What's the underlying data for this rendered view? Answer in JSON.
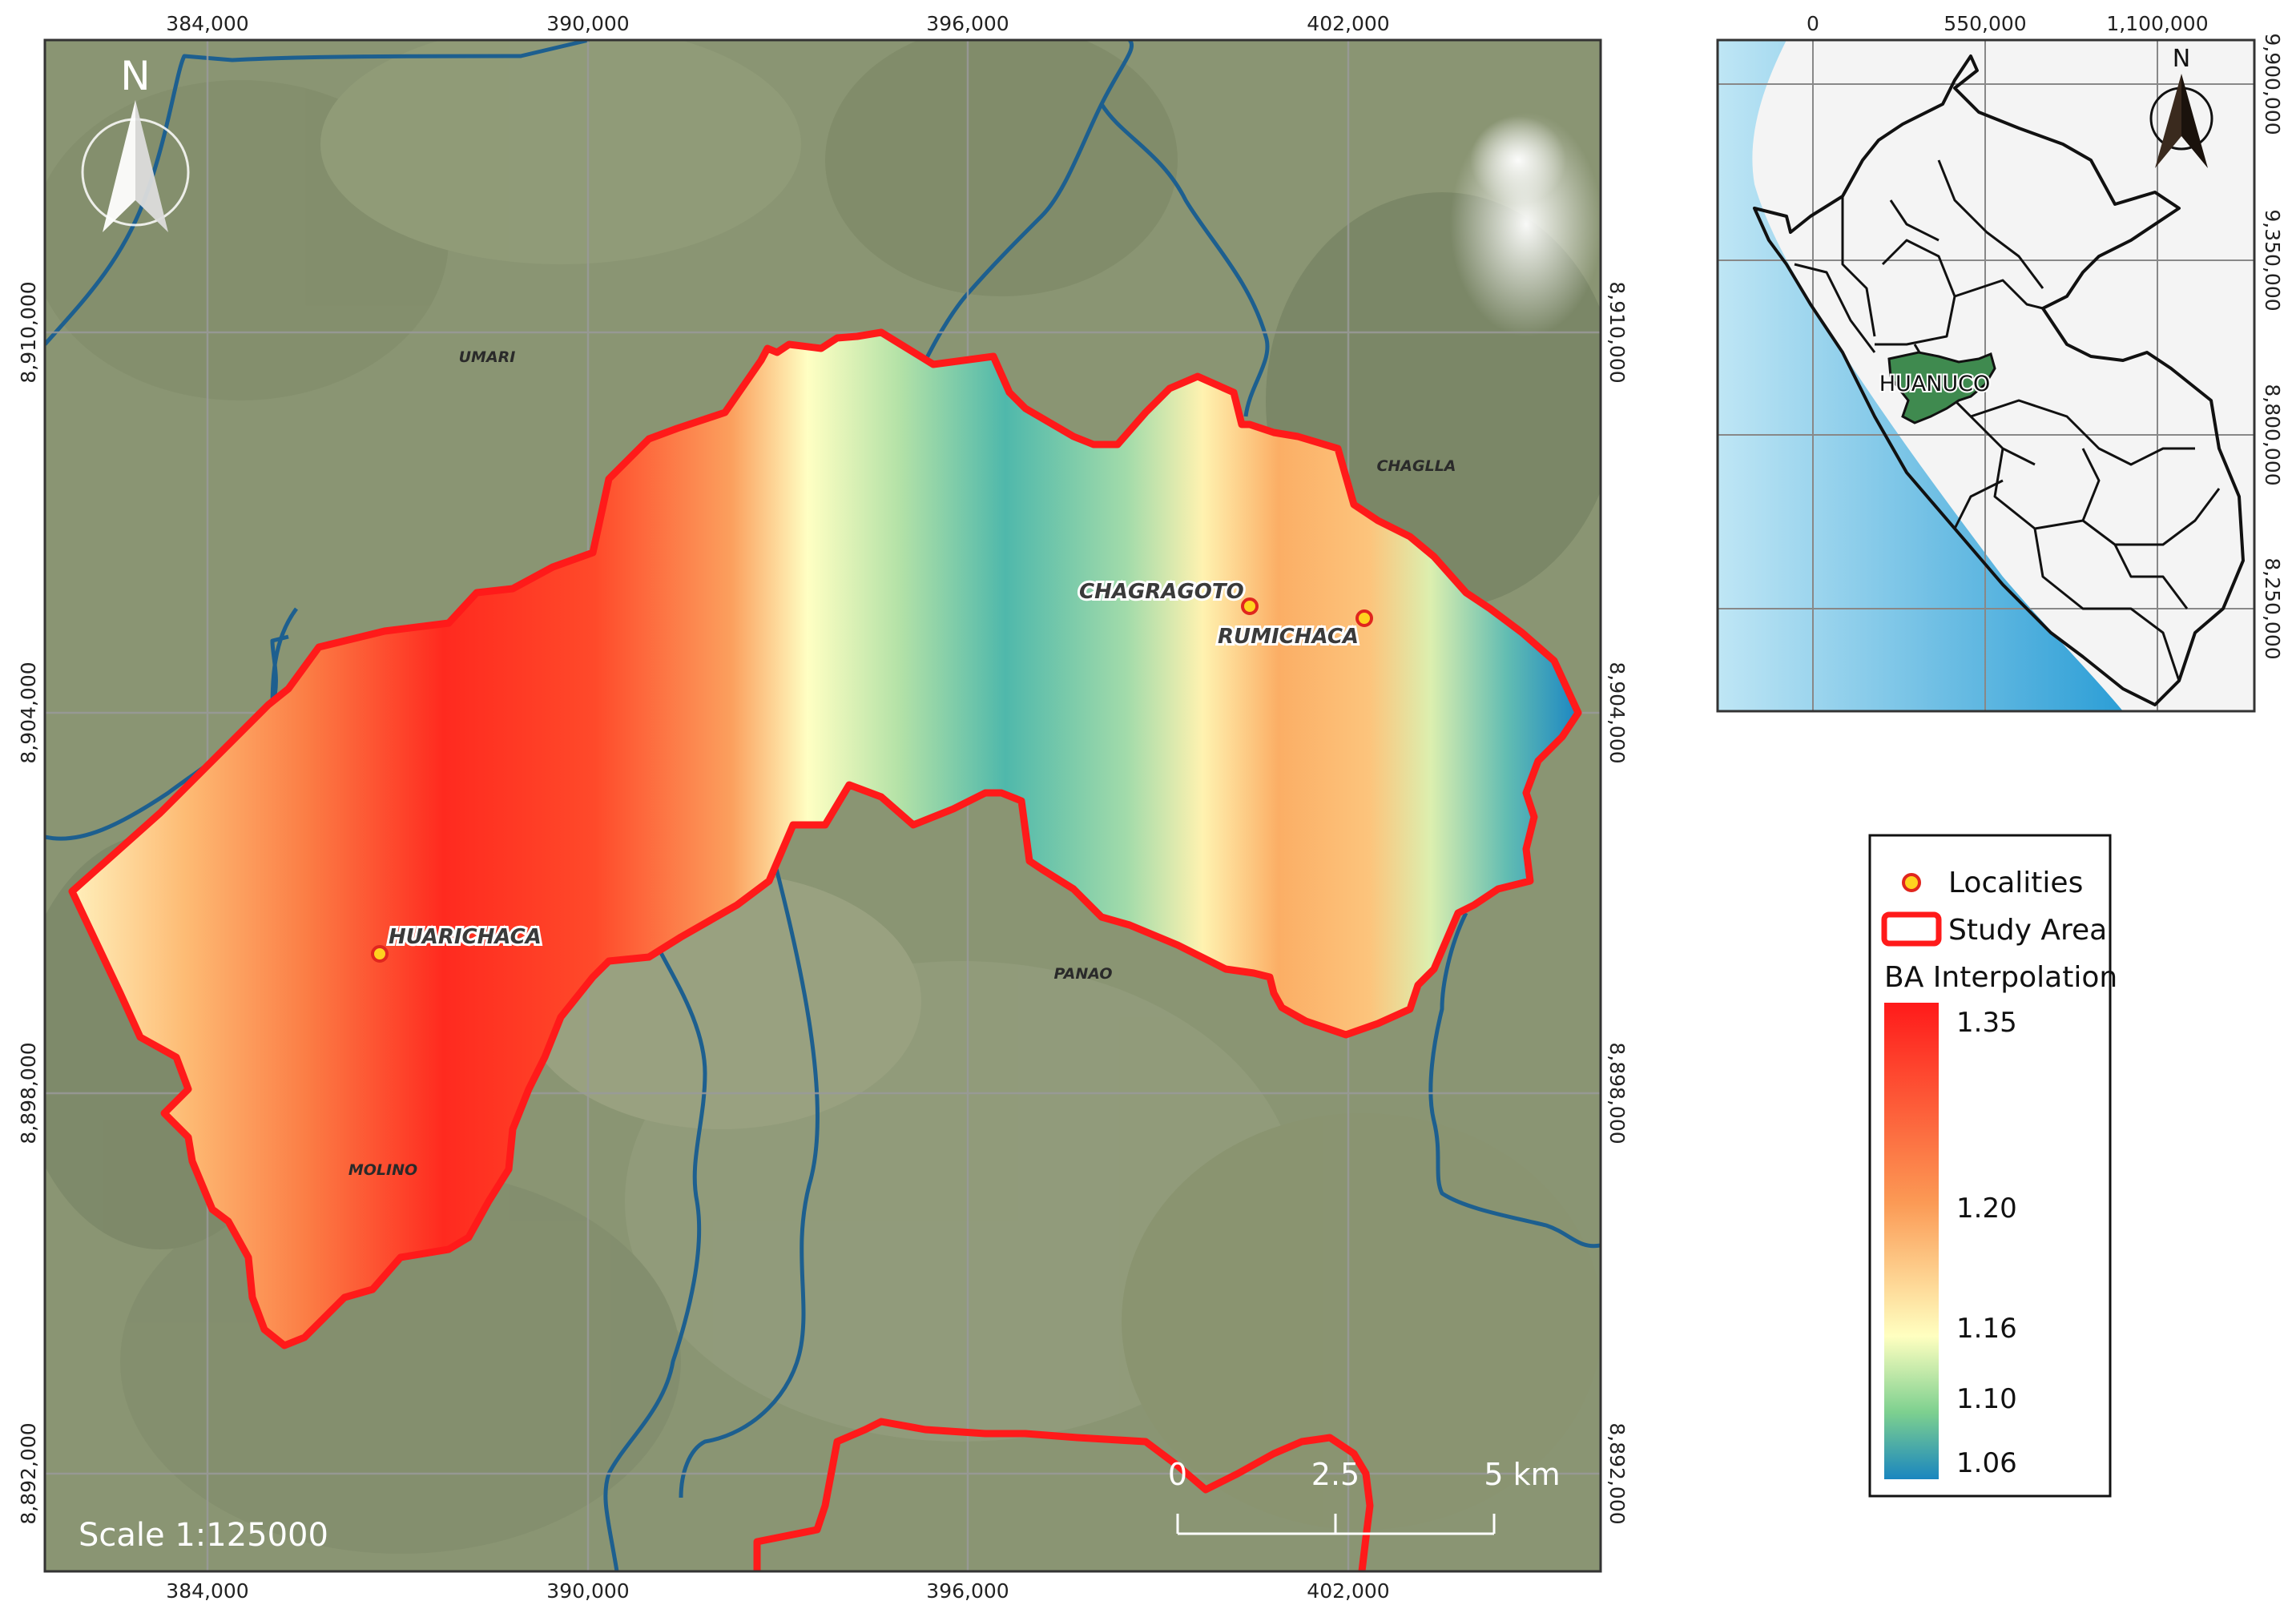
{
  "main_map": {
    "x_ticks": [
      "384,000",
      "390,000",
      "396,000",
      "402,000"
    ],
    "y_ticks": [
      "8,910,000",
      "8,904,000",
      "8,898,000",
      "8,892,000"
    ],
    "north_label": "N",
    "scale_text": "Scale 1:125000",
    "scalebar": {
      "label_0": "0",
      "label_mid": "2.5",
      "label_end": "5 km"
    },
    "towns": [
      "UMARI",
      "CHAGLLA",
      "PANAO",
      "MOLINO"
    ],
    "localities": [
      "CHAGRAGOTO",
      "RUMICHACA",
      "HUARICHACA"
    ],
    "colors": {
      "study_area": "#ff1a1a",
      "rivers": "#1d5f8f",
      "locality_fill": "#ffd21f"
    }
  },
  "inset_map": {
    "x_ticks": [
      "0",
      "550,000",
      "1,100,000"
    ],
    "y_ticks": [
      "9,900,000",
      "9,350,000",
      "8,800,000",
      "8,250,000"
    ],
    "region_label": "HUANUCO",
    "north_label": "N",
    "colors": {
      "region": "#3f8a4f",
      "ocean": "#5bb8e0"
    }
  },
  "legend": {
    "localities": "Localities",
    "study_area": "Study Area",
    "ba_title": "BA Interpolation",
    "ramp_labels": [
      "1.35",
      "1.20",
      "1.16",
      "1.10",
      "1.06"
    ],
    "ramp_colors": [
      "#ff1a1a",
      "#fb9a55",
      "#ffffc0",
      "#7dd08f",
      "#1a86bf"
    ]
  }
}
